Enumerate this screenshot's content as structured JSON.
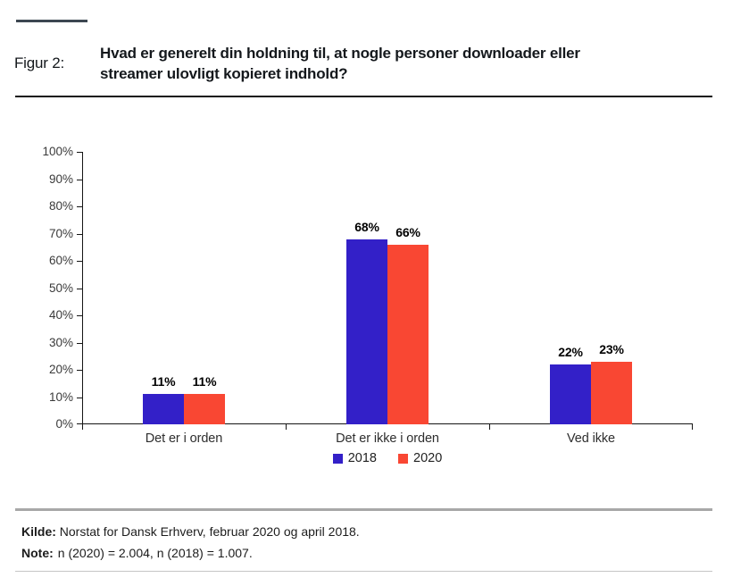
{
  "header": {
    "figure_label": "Figur 2:",
    "title_lines": [
      "Hvad er generelt din holdning til, at nogle personer downloader eller",
      "streamer ulovligt kopieret indhold?"
    ]
  },
  "chart_data": {
    "type": "bar",
    "categories": [
      "Det er i orden",
      "Det er ikke i orden",
      "Ved ikke"
    ],
    "series": [
      {
        "name": "2018",
        "color": "#3320c8",
        "values": [
          11,
          68,
          22
        ]
      },
      {
        "name": "2020",
        "color": "#f94733",
        "values": [
          11,
          66,
          23
        ]
      }
    ],
    "value_suffix": "%",
    "ylim": [
      0,
      100
    ],
    "ytick_step": 10,
    "yticks": [
      "0%",
      "10%",
      "20%",
      "30%",
      "40%",
      "50%",
      "60%",
      "70%",
      "80%",
      "90%",
      "100%"
    ],
    "grid": false,
    "legend_position": "bottom-center",
    "data_labels": [
      "11%",
      "68%",
      "22%",
      "11%",
      "66%",
      "23%"
    ]
  },
  "footer": {
    "kilde_label": "Kilde:",
    "kilde_text": "Norstat for Dansk Erhverv, februar 2020 og april 2018.",
    "note_label": "Note:",
    "note_text": "n (2020) = 2.004, n (2018) = 1.007."
  },
  "colors": {
    "series_2018": "#3320c8",
    "series_2020": "#f94733",
    "accent_dash": "#3d4751",
    "axis": "#151515",
    "tick_label": "#3a3a3a",
    "divider_gray": "#a8a8a8",
    "divider_light": "#c6c6c6"
  }
}
